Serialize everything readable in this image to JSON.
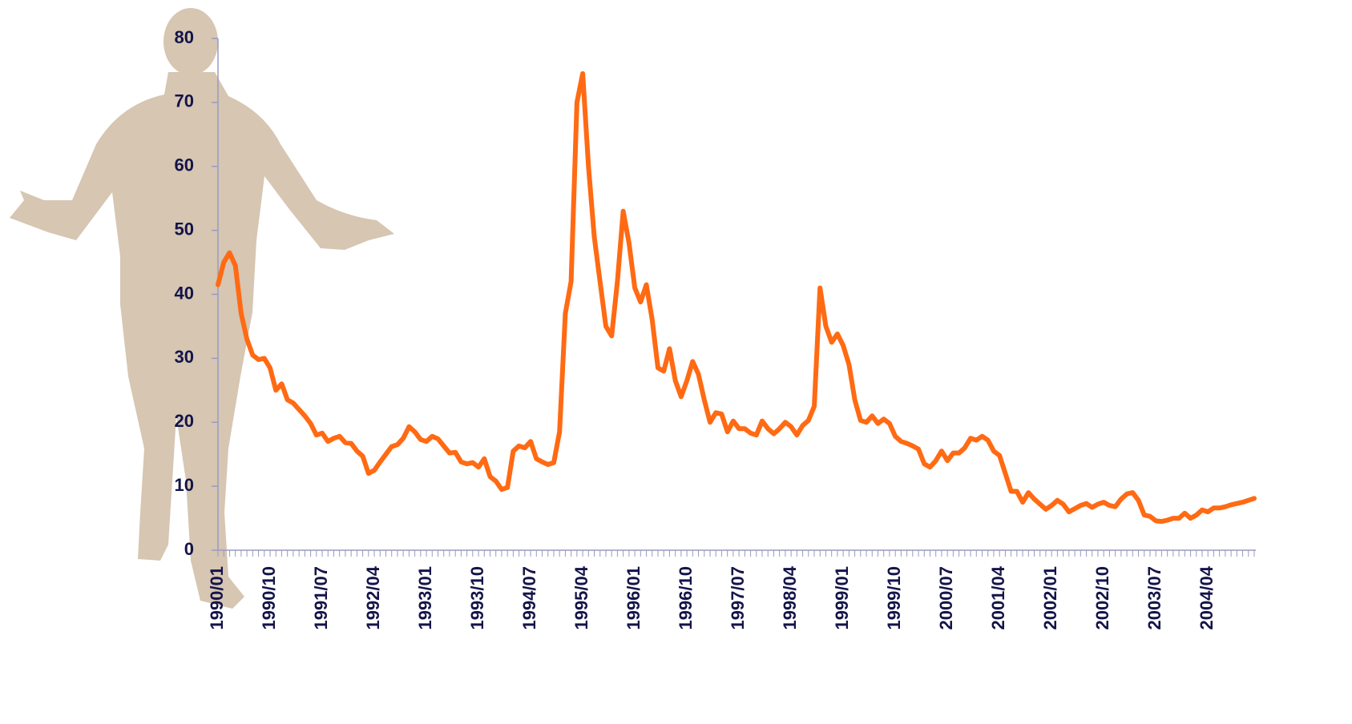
{
  "chart_data": {
    "type": "line",
    "categories": [
      "1990/01",
      null,
      null,
      null,
      null,
      null,
      null,
      null,
      null,
      "1990/10",
      null,
      null,
      null,
      null,
      null,
      null,
      null,
      null,
      "1991/07",
      null,
      null,
      null,
      null,
      null,
      null,
      null,
      null,
      "1992/04",
      null,
      null,
      null,
      null,
      null,
      null,
      null,
      null,
      "1993/01",
      null,
      null,
      null,
      null,
      null,
      null,
      null,
      null,
      "1993/10",
      null,
      null,
      null,
      null,
      null,
      null,
      null,
      null,
      "1994/07",
      null,
      null,
      null,
      null,
      null,
      null,
      null,
      null,
      "1995/04",
      null,
      null,
      null,
      null,
      null,
      null,
      null,
      null,
      "1996/01",
      null,
      null,
      null,
      null,
      null,
      null,
      null,
      null,
      "1996/10",
      null,
      null,
      null,
      null,
      null,
      null,
      null,
      null,
      "1997/07",
      null,
      null,
      null,
      null,
      null,
      null,
      null,
      null,
      "1998/04",
      null,
      null,
      null,
      null,
      null,
      null,
      null,
      null,
      "1999/01",
      null,
      null,
      null,
      null,
      null,
      null,
      null,
      null,
      "1999/10",
      null,
      null,
      null,
      null,
      null,
      null,
      null,
      null,
      "2000/07",
      null,
      null,
      null,
      null,
      null,
      null,
      null,
      null,
      "2001/04",
      null,
      null,
      null,
      null,
      null,
      null,
      null,
      null,
      "2002/01",
      null,
      null,
      null,
      null,
      null,
      null,
      null,
      null,
      "2002/10",
      null,
      null,
      null,
      null,
      null,
      null,
      null,
      null,
      "2003/07",
      null,
      null,
      null,
      null,
      null,
      null,
      null,
      null,
      "2004/04",
      null,
      null,
      null,
      null,
      null,
      null,
      null,
      null
    ],
    "values": [
      41.5,
      45,
      46.5,
      44.5,
      37,
      33,
      30.5,
      29.8,
      30,
      28.5,
      25,
      26,
      23.5,
      23,
      22,
      21,
      19.8,
      18,
      18.3,
      17,
      17.5,
      17.8,
      16.8,
      16.7,
      15.5,
      14.7,
      12,
      12.5,
      13.8,
      15,
      16.2,
      16.5,
      17.5,
      19.3,
      18.5,
      17.3,
      17,
      17.8,
      17.4,
      16.3,
      15.2,
      15.3,
      13.8,
      13.5,
      13.7,
      13,
      14.3,
      11.5,
      10.8,
      9.5,
      9.8,
      15.5,
      16.3,
      16,
      17,
      14.3,
      13.8,
      13.4,
      13.7,
      18.5,
      37,
      42,
      70,
      74.5,
      60,
      49,
      42,
      35,
      33.5,
      42,
      53,
      48,
      41,
      38.8,
      41.5,
      36,
      28.5,
      28,
      31.5,
      26.5,
      24,
      26.5,
      29.5,
      27.5,
      23.5,
      20,
      21.5,
      21.3,
      18.5,
      20.2,
      19,
      19,
      18.3,
      18,
      20.2,
      19,
      18.2,
      19,
      20,
      19.3,
      18,
      19.5,
      20.3,
      22.5,
      41,
      35,
      32.5,
      33.8,
      32,
      29,
      23.5,
      20.3,
      20,
      21,
      19.8,
      20.5,
      19.8,
      17.8,
      17,
      16.7,
      16.3,
      15.8,
      13.5,
      13,
      14,
      15.5,
      14,
      15.2,
      15.2,
      16,
      17.5,
      17.2,
      17.8,
      17.2,
      15.5,
      14.8,
      12,
      9.2,
      9.2,
      7.5,
      9,
      8,
      7.2,
      6.4,
      7,
      7.8,
      7.2,
      6,
      6.5,
      7,
      7.3,
      6.7,
      7.2,
      7.5,
      7,
      6.8,
      8,
      8.8,
      9,
      7.8,
      5.5,
      5.3,
      4.6,
      4.5,
      4.7,
      5,
      5,
      5.8,
      5,
      5.5,
      6.3,
      6,
      6.6,
      6.6,
      6.8,
      7.1,
      7.3,
      7.5,
      7.8,
      8.1
    ],
    "color": "#ff6a13",
    "ylim": [
      0,
      80
    ],
    "yticks": [
      0,
      10,
      20,
      30,
      40,
      50,
      60,
      70,
      80
    ]
  }
}
